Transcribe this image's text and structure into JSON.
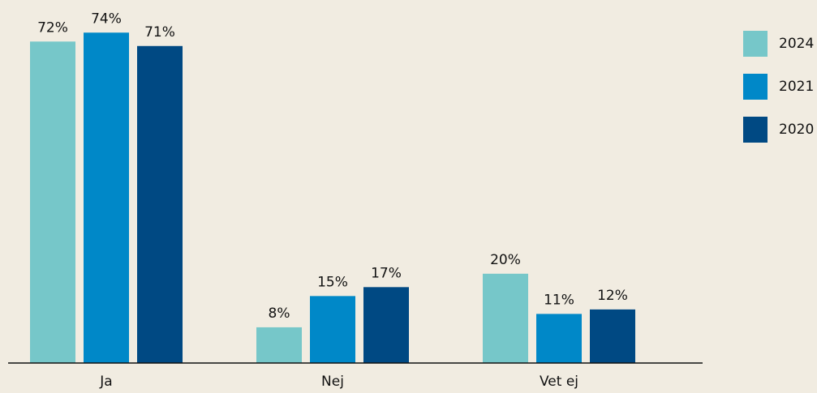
{
  "chart_data": {
    "type": "bar",
    "categories": [
      "Ja",
      "Nej",
      "Vet ej"
    ],
    "series": [
      {
        "name": "2024",
        "color": "#76c7c9",
        "values": [
          72,
          8,
          20
        ],
        "value_labels": [
          "72%",
          "8%",
          "20%"
        ]
      },
      {
        "name": "2021",
        "color": "#0088c8",
        "values": [
          74,
          15,
          11
        ],
        "value_labels": [
          "74%",
          "15%",
          "11%"
        ]
      },
      {
        "name": "2020",
        "color": "#004983",
        "values": [
          71,
          17,
          12
        ],
        "value_labels": [
          "71%",
          "17%",
          "12%"
        ]
      }
    ],
    "legend": "top-right"
  }
}
